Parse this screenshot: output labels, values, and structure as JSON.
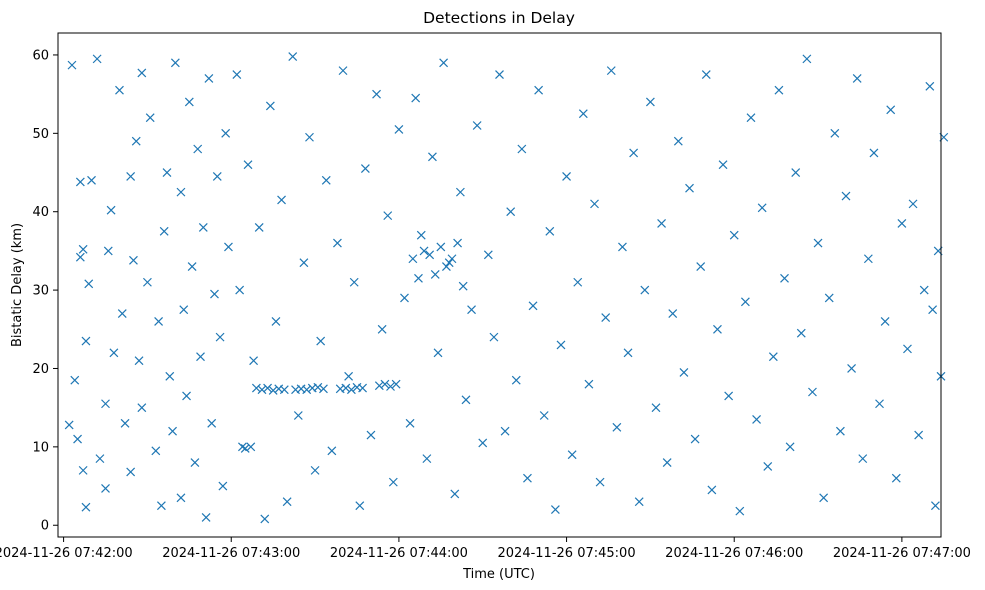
{
  "chart_data": {
    "type": "scatter",
    "title": "Detections in Delay",
    "xlabel": "Time (UTC)",
    "ylabel": "Bistatic Delay (km)",
    "x_ticks": [
      "2024-11-26 07:42:00",
      "2024-11-26 07:43:00",
      "2024-11-26 07:44:00",
      "2024-11-26 07:45:00",
      "2024-11-26 07:46:00",
      "2024-11-26 07:47:00"
    ],
    "y_ticks": [
      0,
      10,
      20,
      30,
      40,
      50,
      60
    ],
    "xlim": [
      "2024-11-26 07:41:58",
      "2024-11-26 07:47:14"
    ],
    "ylim": [
      -1.5,
      62.8
    ],
    "x_unit": "seconds after 07:42:00",
    "marker": "x",
    "color": "#1f77b4",
    "grid": false,
    "legend": "none",
    "points": [
      [
        2,
        12.8
      ],
      [
        4,
        18.5
      ],
      [
        5,
        11.0
      ],
      [
        3,
        58.7
      ],
      [
        6,
        43.8
      ],
      [
        7,
        35.2
      ],
      [
        6,
        34.2
      ],
      [
        8,
        23.5
      ],
      [
        9,
        30.8
      ],
      [
        10,
        44.0
      ],
      [
        7,
        7.0
      ],
      [
        8,
        2.3
      ],
      [
        12,
        59.5
      ],
      [
        13,
        8.5
      ],
      [
        15,
        4.7
      ],
      [
        15,
        15.5
      ],
      [
        16,
        35.0
      ],
      [
        17,
        40.2
      ],
      [
        18,
        22.0
      ],
      [
        20,
        55.5
      ],
      [
        21,
        27.0
      ],
      [
        22,
        13.0
      ],
      [
        24,
        44.5
      ],
      [
        24,
        6.8
      ],
      [
        25,
        33.8
      ],
      [
        26,
        49.0
      ],
      [
        27,
        21.0
      ],
      [
        28,
        57.7
      ],
      [
        28,
        15.0
      ],
      [
        30,
        31.0
      ],
      [
        31,
        52.0
      ],
      [
        33,
        9.5
      ],
      [
        34,
        26.0
      ],
      [
        35,
        2.5
      ],
      [
        36,
        37.5
      ],
      [
        37,
        45.0
      ],
      [
        38,
        19.0
      ],
      [
        39,
        12.0
      ],
      [
        40,
        59.0
      ],
      [
        42,
        42.5
      ],
      [
        42,
        3.5
      ],
      [
        43,
        27.5
      ],
      [
        44,
        16.5
      ],
      [
        45,
        54.0
      ],
      [
        46,
        33.0
      ],
      [
        47,
        8.0
      ],
      [
        48,
        48.0
      ],
      [
        49,
        21.5
      ],
      [
        50,
        38.0
      ],
      [
        51,
        1.0
      ],
      [
        52,
        57.0
      ],
      [
        53,
        13.0
      ],
      [
        54,
        29.5
      ],
      [
        55,
        44.5
      ],
      [
        56,
        24.0
      ],
      [
        57,
        5.0
      ],
      [
        58,
        50.0
      ],
      [
        59,
        35.5
      ],
      [
        64,
        10.0
      ],
      [
        65,
        9.8
      ],
      [
        67,
        10.0
      ],
      [
        69,
        17.5
      ],
      [
        71,
        17.3
      ],
      [
        73,
        17.5
      ],
      [
        75,
        17.2
      ],
      [
        77,
        17.4
      ],
      [
        79,
        17.3
      ],
      [
        62,
        57.5
      ],
      [
        63,
        30.0
      ],
      [
        66,
        46.0
      ],
      [
        68,
        21.0
      ],
      [
        70,
        38.0
      ],
      [
        72,
        0.8
      ],
      [
        74,
        53.5
      ],
      [
        76,
        26.0
      ],
      [
        78,
        41.5
      ],
      [
        80,
        3.0
      ],
      [
        82,
        59.8
      ],
      [
        84,
        14.0
      ],
      [
        86,
        33.5
      ],
      [
        88,
        49.5
      ],
      [
        90,
        7.0
      ],
      [
        92,
        23.5
      ],
      [
        94,
        44.0
      ],
      [
        96,
        9.5
      ],
      [
        98,
        36.0
      ],
      [
        100,
        58.0
      ],
      [
        102,
        19.0
      ],
      [
        104,
        31.0
      ],
      [
        106,
        2.5
      ],
      [
        108,
        45.5
      ],
      [
        110,
        11.5
      ],
      [
        112,
        55.0
      ],
      [
        114,
        25.0
      ],
      [
        116,
        39.5
      ],
      [
        118,
        5.5
      ],
      [
        120,
        50.5
      ],
      [
        83,
        17.3
      ],
      [
        85,
        17.4
      ],
      [
        87,
        17.3
      ],
      [
        89,
        17.5
      ],
      [
        91,
        17.6
      ],
      [
        93,
        17.4
      ],
      [
        99,
        17.4
      ],
      [
        101,
        17.5
      ],
      [
        103,
        17.3
      ],
      [
        105,
        17.6
      ],
      [
        107,
        17.5
      ],
      [
        113,
        17.8
      ],
      [
        115,
        18.0
      ],
      [
        117,
        17.7
      ],
      [
        119,
        18.0
      ],
      [
        122,
        29.0
      ],
      [
        124,
        13.0
      ],
      [
        126,
        54.5
      ],
      [
        128,
        37.0
      ],
      [
        130,
        8.5
      ],
      [
        132,
        47.0
      ],
      [
        134,
        22.0
      ],
      [
        136,
        59.0
      ],
      [
        138,
        33.5
      ],
      [
        140,
        4.0
      ],
      [
        142,
        42.5
      ],
      [
        144,
        16.0
      ],
      [
        146,
        27.5
      ],
      [
        148,
        51.0
      ],
      [
        150,
        10.5
      ],
      [
        152,
        34.5
      ],
      [
        154,
        24.0
      ],
      [
        156,
        57.5
      ],
      [
        158,
        12.0
      ],
      [
        160,
        40.0
      ],
      [
        125,
        34.0
      ],
      [
        127,
        31.5
      ],
      [
        129,
        35.0
      ],
      [
        131,
        34.5
      ],
      [
        133,
        32.0
      ],
      [
        135,
        35.5
      ],
      [
        137,
        33.0
      ],
      [
        139,
        34.0
      ],
      [
        141,
        36.0
      ],
      [
        143,
        30.5
      ],
      [
        162,
        18.5
      ],
      [
        164,
        48.0
      ],
      [
        166,
        6.0
      ],
      [
        168,
        28.0
      ],
      [
        170,
        55.5
      ],
      [
        172,
        14.0
      ],
      [
        174,
        37.5
      ],
      [
        176,
        2.0
      ],
      [
        178,
        23.0
      ],
      [
        180,
        44.5
      ],
      [
        182,
        9.0
      ],
      [
        184,
        31.0
      ],
      [
        186,
        52.5
      ],
      [
        188,
        18.0
      ],
      [
        190,
        41.0
      ],
      [
        192,
        5.5
      ],
      [
        194,
        26.5
      ],
      [
        196,
        58.0
      ],
      [
        198,
        12.5
      ],
      [
        200,
        35.5
      ],
      [
        202,
        22.0
      ],
      [
        204,
        47.5
      ],
      [
        206,
        3.0
      ],
      [
        208,
        30.0
      ],
      [
        210,
        54.0
      ],
      [
        212,
        15.0
      ],
      [
        214,
        38.5
      ],
      [
        216,
        8.0
      ],
      [
        218,
        27.0
      ],
      [
        220,
        49.0
      ],
      [
        222,
        19.5
      ],
      [
        224,
        43.0
      ],
      [
        226,
        11.0
      ],
      [
        228,
        33.0
      ],
      [
        230,
        57.5
      ],
      [
        232,
        4.5
      ],
      [
        234,
        25.0
      ],
      [
        236,
        46.0
      ],
      [
        238,
        16.5
      ],
      [
        240,
        37.0
      ],
      [
        242,
        1.8
      ],
      [
        244,
        28.5
      ],
      [
        246,
        52.0
      ],
      [
        248,
        13.5
      ],
      [
        250,
        40.5
      ],
      [
        252,
        7.5
      ],
      [
        254,
        21.5
      ],
      [
        256,
        55.5
      ],
      [
        258,
        31.5
      ],
      [
        260,
        10.0
      ],
      [
        262,
        45.0
      ],
      [
        264,
        24.5
      ],
      [
        266,
        59.5
      ],
      [
        268,
        17.0
      ],
      [
        270,
        36.0
      ],
      [
        272,
        3.5
      ],
      [
        274,
        29.0
      ],
      [
        276,
        50.0
      ],
      [
        278,
        12.0
      ],
      [
        280,
        42.0
      ],
      [
        282,
        20.0
      ],
      [
        284,
        57.0
      ],
      [
        286,
        8.5
      ],
      [
        288,
        34.0
      ],
      [
        290,
        47.5
      ],
      [
        292,
        15.5
      ],
      [
        294,
        26.0
      ],
      [
        296,
        53.0
      ],
      [
        298,
        6.0
      ],
      [
        300,
        38.5
      ],
      [
        302,
        22.5
      ],
      [
        304,
        41.0
      ],
      [
        306,
        11.5
      ],
      [
        308,
        30.0
      ],
      [
        310,
        56.0
      ],
      [
        312,
        2.5
      ],
      [
        314,
        19.0
      ],
      [
        315,
        49.5
      ],
      [
        313,
        35.0
      ],
      [
        311,
        27.5
      ]
    ]
  }
}
